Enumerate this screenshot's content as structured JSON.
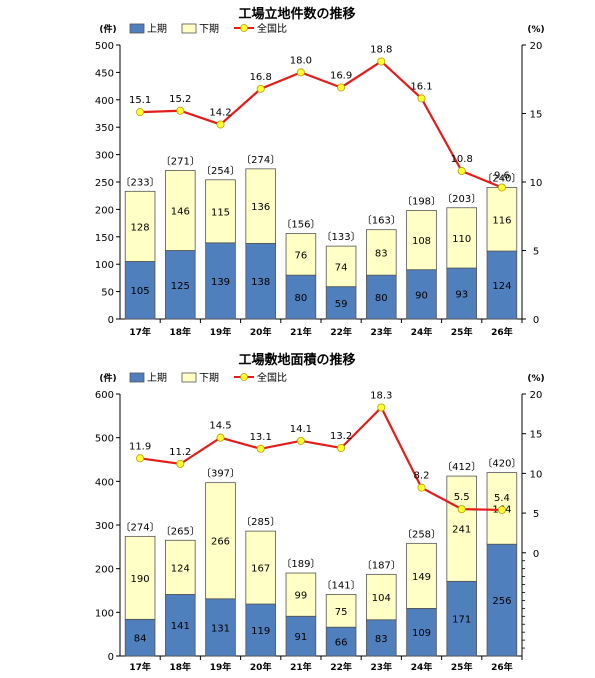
{
  "colors": {
    "upper": "#4f7fbd",
    "lower": "#ffffc6",
    "ratio": "#e41c1c",
    "marker": "#ffff33",
    "bar_border": "#555555"
  },
  "legend": {
    "upper": "上期",
    "lower": "下期",
    "ratio": "全国比"
  },
  "chart_data": [
    {
      "type": "bar",
      "stacked": true,
      "title": "工場立地件数の推移",
      "ylabel": "(件)",
      "y2label": "(%)",
      "categories": [
        "17年",
        "18年",
        "19年",
        "20年",
        "21年",
        "22年",
        "23年",
        "24年",
        "25年",
        "26年"
      ],
      "ylim": [
        0,
        500
      ],
      "yticks": [
        0,
        50,
        100,
        150,
        200,
        250,
        300,
        350,
        400,
        450,
        500
      ],
      "y2lim": [
        0,
        20
      ],
      "y2ticks": [
        0,
        5,
        10,
        15,
        20
      ],
      "series": [
        {
          "name": "上期",
          "values": [
            105,
            125,
            139,
            138,
            80,
            59,
            80,
            90,
            93,
            124
          ]
        },
        {
          "name": "下期",
          "values": [
            128,
            146,
            115,
            136,
            76,
            74,
            83,
            108,
            110,
            116
          ]
        },
        {
          "name": "全国比",
          "axis": "right",
          "type": "line",
          "values": [
            15.1,
            15.2,
            14.2,
            16.8,
            18.0,
            16.9,
            18.8,
            16.1,
            10.8,
            9.6
          ]
        }
      ],
      "totals": [
        "〔233〕",
        "〔271〕",
        "〔254〕",
        "〔274〕",
        "〔156〕",
        "〔133〕",
        "〔163〕",
        "〔198〕",
        "〔203〕",
        "〔240〕"
      ],
      "ratio_labels": [
        "15.1",
        "15.2",
        "14.2",
        "16.8",
        "18.0",
        "16.9",
        "18.8",
        "16.1",
        "10.8",
        "9.6"
      ]
    },
    {
      "type": "bar",
      "stacked": true,
      "title": "工場敷地面積の推移",
      "ylabel": "(件)",
      "y2label": "(%)",
      "categories": [
        "17年",
        "18年",
        "19年",
        "20年",
        "21年",
        "22年",
        "23年",
        "24年",
        "25年",
        "26年"
      ],
      "ylim": [
        0,
        600
      ],
      "yticks": [
        0,
        100,
        200,
        300,
        400,
        500,
        600
      ],
      "y2lim": [
        -13,
        20
      ],
      "y2ticks": [
        0,
        5,
        10,
        15,
        20
      ],
      "series": [
        {
          "name": "上期",
          "values": [
            84,
            141,
            131,
            119,
            91,
            66,
            83,
            109,
            171,
            256
          ]
        },
        {
          "name": "下期",
          "values": [
            190,
            124,
            266,
            167,
            99,
            75,
            104,
            149,
            241,
            164
          ]
        },
        {
          "name": "全国比",
          "axis": "right",
          "type": "line",
          "values": [
            11.9,
            11.2,
            14.5,
            13.1,
            14.1,
            13.2,
            18.3,
            8.2,
            5.5,
            5.4
          ]
        }
      ],
      "totals": [
        "〔274〕",
        "〔265〕",
        "〔397〕",
        "〔285〕",
        "〔189〕",
        "〔141〕",
        "〔187〕",
        "〔258〕",
        "〔412〕",
        "〔420〕"
      ],
      "ratio_labels": [
        "11.9",
        "11.2",
        "14.5",
        "13.1",
        "14.1",
        "13.2",
        "18.3",
        "8.2",
        "5.5",
        "5.4"
      ]
    }
  ]
}
